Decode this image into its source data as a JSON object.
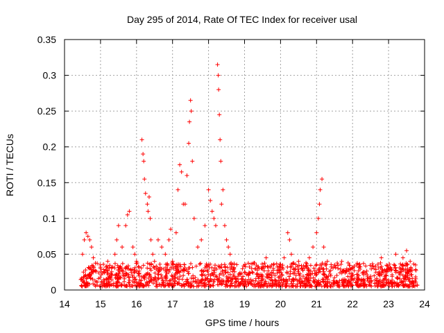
{
  "chart_data": {
    "type": "scatter",
    "title": "Day 295 of 2014, Rate Of TEC Index for receiver usal",
    "xlabel": "GPS time / hours",
    "ylabel": "ROTI / TECUs",
    "xlim": [
      14,
      24
    ],
    "ylim": [
      0,
      0.35
    ],
    "x_ticks": [
      14,
      15,
      16,
      17,
      18,
      19,
      20,
      21,
      22,
      23,
      24
    ],
    "y_ticks": [
      0,
      0.05,
      0.1,
      0.15,
      0.2,
      0.25,
      0.3,
      0.35
    ],
    "x_tick_labels": [
      "14",
      "15",
      "16",
      "17",
      "18",
      "19",
      "20",
      "21",
      "22",
      "23",
      "24"
    ],
    "y_tick_labels": [
      "0",
      "0.05",
      "0.1",
      "0.15",
      "0.2",
      "0.25",
      "0.3",
      "0.35"
    ],
    "grid": true,
    "marker": "+",
    "marker_color": "#ff0000",
    "x_data_range": [
      14.45,
      23.8
    ],
    "series": [
      {
        "name": "ROTI",
        "description_points": "representative digitized points; dense baseline between 0.005 and 0.04 across the full range",
        "points": [
          [
            14.5,
            0.05
          ],
          [
            14.55,
            0.07
          ],
          [
            14.6,
            0.08
          ],
          [
            14.65,
            0.075
          ],
          [
            14.7,
            0.07
          ],
          [
            14.75,
            0.06
          ],
          [
            14.8,
            0.045
          ],
          [
            15.0,
            0.03
          ],
          [
            15.2,
            0.04
          ],
          [
            15.4,
            0.05
          ],
          [
            15.45,
            0.07
          ],
          [
            15.5,
            0.09
          ],
          [
            15.6,
            0.06
          ],
          [
            15.7,
            0.09
          ],
          [
            15.75,
            0.105
          ],
          [
            15.8,
            0.11
          ],
          [
            15.9,
            0.06
          ],
          [
            15.95,
            0.05
          ],
          [
            16.0,
            0.04
          ],
          [
            16.15,
            0.21
          ],
          [
            16.18,
            0.19
          ],
          [
            16.2,
            0.18
          ],
          [
            16.22,
            0.155
          ],
          [
            16.25,
            0.135
          ],
          [
            16.3,
            0.12
          ],
          [
            16.32,
            0.11
          ],
          [
            16.35,
            0.13
          ],
          [
            16.38,
            0.1
          ],
          [
            16.4,
            0.07
          ],
          [
            16.45,
            0.05
          ],
          [
            16.5,
            0.04
          ],
          [
            16.6,
            0.07
          ],
          [
            16.7,
            0.06
          ],
          [
            16.8,
            0.05
          ],
          [
            16.9,
            0.07
          ],
          [
            16.95,
            0.085
          ],
          [
            17.0,
            0.04
          ],
          [
            17.1,
            0.08
          ],
          [
            17.15,
            0.14
          ],
          [
            17.2,
            0.175
          ],
          [
            17.25,
            0.165
          ],
          [
            17.3,
            0.12
          ],
          [
            17.35,
            0.12
          ],
          [
            17.4,
            0.16
          ],
          [
            17.45,
            0.205
          ],
          [
            17.47,
            0.235
          ],
          [
            17.5,
            0.265
          ],
          [
            17.52,
            0.25
          ],
          [
            17.55,
            0.18
          ],
          [
            17.6,
            0.1
          ],
          [
            17.7,
            0.06
          ],
          [
            17.8,
            0.07
          ],
          [
            17.9,
            0.09
          ],
          [
            18.0,
            0.14
          ],
          [
            18.05,
            0.125
          ],
          [
            18.1,
            0.11
          ],
          [
            18.15,
            0.1
          ],
          [
            18.2,
            0.09
          ],
          [
            18.25,
            0.315
          ],
          [
            18.27,
            0.3
          ],
          [
            18.28,
            0.28
          ],
          [
            18.3,
            0.245
          ],
          [
            18.32,
            0.21
          ],
          [
            18.34,
            0.18
          ],
          [
            18.36,
            0.12
          ],
          [
            18.4,
            0.14
          ],
          [
            18.45,
            0.09
          ],
          [
            18.5,
            0.07
          ],
          [
            18.55,
            0.06
          ],
          [
            18.6,
            0.05
          ],
          [
            18.7,
            0.03
          ],
          [
            19.0,
            0.025
          ],
          [
            19.3,
            0.03
          ],
          [
            19.6,
            0.045
          ],
          [
            19.8,
            0.03
          ],
          [
            20.0,
            0.035
          ],
          [
            20.1,
            0.045
          ],
          [
            20.2,
            0.08
          ],
          [
            20.25,
            0.07
          ],
          [
            20.3,
            0.05
          ],
          [
            20.5,
            0.04
          ],
          [
            20.6,
            0.03
          ],
          [
            20.8,
            0.045
          ],
          [
            20.9,
            0.06
          ],
          [
            21.0,
            0.08
          ],
          [
            21.05,
            0.1
          ],
          [
            21.08,
            0.12
          ],
          [
            21.1,
            0.14
          ],
          [
            21.15,
            0.155
          ],
          [
            21.2,
            0.06
          ],
          [
            21.3,
            0.04
          ],
          [
            21.5,
            0.035
          ],
          [
            21.7,
            0.04
          ],
          [
            22.0,
            0.02
          ],
          [
            22.3,
            0.025
          ],
          [
            22.6,
            0.02
          ],
          [
            22.8,
            0.045
          ],
          [
            22.9,
            0.025
          ],
          [
            23.0,
            0.03
          ],
          [
            23.2,
            0.05
          ],
          [
            23.4,
            0.045
          ],
          [
            23.5,
            0.055
          ],
          [
            23.6,
            0.04
          ],
          [
            23.75,
            0.035
          ]
        ]
      }
    ]
  }
}
